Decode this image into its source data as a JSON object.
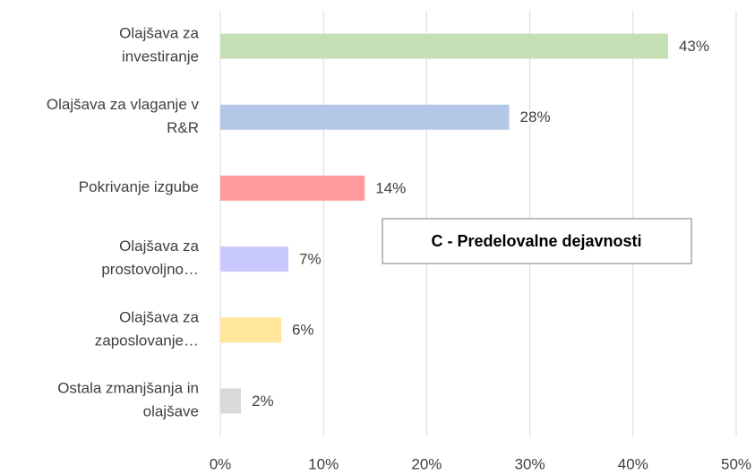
{
  "chart_data": {
    "type": "bar",
    "orientation": "horizontal",
    "categories": [
      "Olajšava za\ninvestiranje",
      "Olajšava za vlaganje v\nR&R",
      "Pokrivanje izgube",
      "Olajšava za\nprostovoljno…",
      "Olajšava za\nzaposlovanje…",
      "Ostala zmanjšanja in\nolajšave"
    ],
    "values": [
      43.4,
      28,
      14,
      6.6,
      5.9,
      2
    ],
    "value_labels": [
      "43%",
      "28%",
      "14%",
      "7%",
      "6%",
      "2%"
    ],
    "colors": [
      "#c5e0b4",
      "#b4c7e7",
      "#ff9b9b",
      "#c9c9ff",
      "#ffe699",
      "#d9d9d9"
    ],
    "xlim": [
      0,
      50
    ],
    "xticks": [
      {
        "value": 0,
        "label": "0%"
      },
      {
        "value": 10,
        "label": "10%"
      },
      {
        "value": 20,
        "label": "20%"
      },
      {
        "value": 30,
        "label": "30%"
      },
      {
        "value": 40,
        "label": "40%"
      },
      {
        "value": 50,
        "label": "50%"
      }
    ],
    "grid": true,
    "annotation": "C - Predelovalne dejavnosti"
  }
}
